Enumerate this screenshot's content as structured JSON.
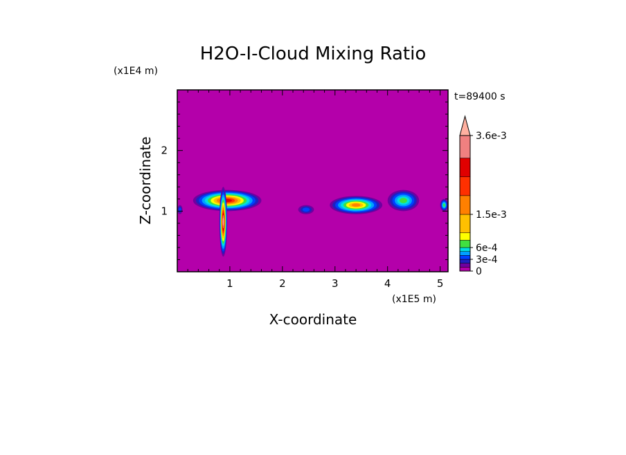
{
  "chart_data": {
    "type": "heatmap",
    "title": "H2O-I-Cloud Mixing Ratio",
    "xlabel": "X-coordinate",
    "ylabel": "Z-coordinate",
    "x_unit": "(x1E5 m)",
    "y_unit": "(x1E4 m)",
    "time_label": "t=89400 s",
    "xlim": [
      0,
      5.15
    ],
    "ylim": [
      0,
      3
    ],
    "x_ticks": [
      1,
      2,
      3,
      4,
      5
    ],
    "y_ticks": [
      1,
      2
    ],
    "background_level": 0,
    "colorbar": {
      "levels": [
        0,
        0.0001,
        0.0002,
        0.0003,
        0.0004,
        0.0005,
        0.0006,
        0.0008,
        0.001,
        0.0015,
        0.002,
        0.0025,
        0.003,
        0.0036
      ],
      "colors": [
        "#b400aa",
        "#7000a0",
        "#2020c0",
        "#0040ff",
        "#00a0ff",
        "#00e0e0",
        "#40e040",
        "#ffff00",
        "#ffc000",
        "#ff8000",
        "#ff3000",
        "#e00000",
        "#f08080",
        "#ffb0a0"
      ],
      "labels": [
        {
          "value": 0,
          "text": "0"
        },
        {
          "value": 0.0003,
          "text": "3e-4"
        },
        {
          "value": 0.0006,
          "text": "6e-4"
        },
        {
          "value": 0.0015,
          "text": "1.5e-3"
        },
        {
          "value": 0.0036,
          "text": "3.6e-3"
        }
      ]
    },
    "cloud_regions": [
      {
        "x_range": [
          0.0,
          0.1
        ],
        "z_range": [
          0.95,
          1.1
        ],
        "max_level": 0.0003
      },
      {
        "x_range": [
          0.3,
          1.6
        ],
        "z_range": [
          1.0,
          1.35
        ],
        "max_level": 0.0025
      },
      {
        "x_range": [
          0.8,
          0.95
        ],
        "z_range": [
          0.25,
          1.4
        ],
        "max_level": 0.0036
      },
      {
        "x_range": [
          2.3,
          2.6
        ],
        "z_range": [
          0.95,
          1.1
        ],
        "max_level": 0.0003
      },
      {
        "x_range": [
          2.9,
          3.9
        ],
        "z_range": [
          0.95,
          1.25
        ],
        "max_level": 0.0015
      },
      {
        "x_range": [
          4.0,
          4.6
        ],
        "z_range": [
          1.0,
          1.35
        ],
        "max_level": 0.0006
      },
      {
        "x_range": [
          5.0,
          5.15
        ],
        "z_range": [
          1.0,
          1.2
        ],
        "max_level": 0.0006
      }
    ]
  }
}
